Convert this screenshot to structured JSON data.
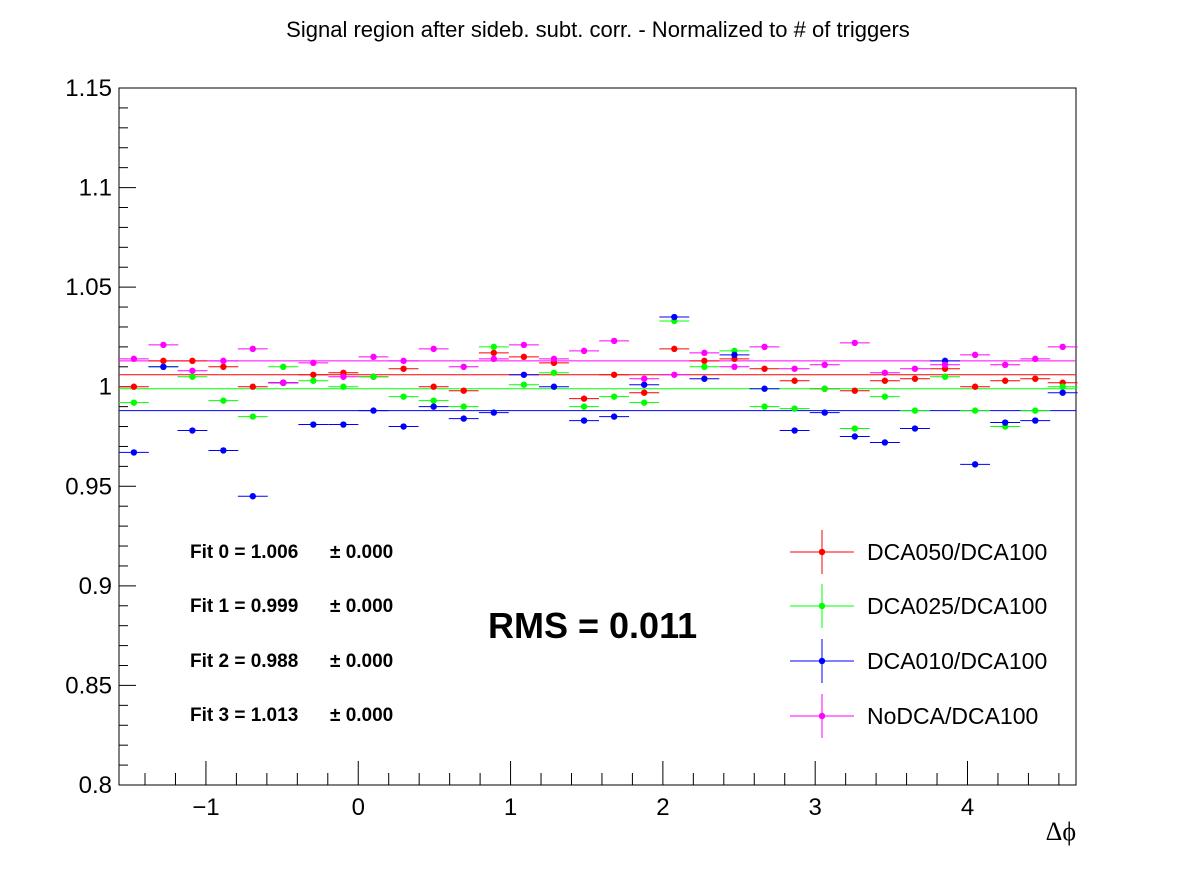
{
  "chart_data": {
    "type": "scatter",
    "title": "Signal region after sideb. subt. corr. - Normalized to # of triggers",
    "xlabel": "Δϕ",
    "ylabel": "",
    "xlim": [
      -1.5708,
      4.7124
    ],
    "ylim": [
      0.8,
      1.15
    ],
    "x_ticks": [
      -1,
      0,
      1,
      2,
      3,
      4
    ],
    "x_tick_labels": [
      "−1",
      "0",
      "1",
      "2",
      "3",
      "4"
    ],
    "y_ticks": [
      0.8,
      0.85,
      0.9,
      0.95,
      1.0,
      1.05,
      1.1,
      1.15
    ],
    "y_tick_labels": [
      "0.8",
      "0.85",
      "0.9",
      "0.95",
      "1",
      "1.05",
      "1.1",
      "1.15"
    ],
    "grid": false,
    "legend_position": "bottom-right",
    "x": [
      -1.4731,
      -1.2796,
      -1.089,
      -0.8855,
      -0.6923,
      -0.4925,
      -0.295,
      -0.0975,
      0.1,
      0.2975,
      0.495,
      0.6925,
      0.89,
      1.0875,
      1.285,
      1.4825,
      1.68,
      1.8775,
      2.075,
      2.2725,
      2.47,
      2.6675,
      2.865,
      3.0625,
      3.26,
      3.4575,
      3.655,
      3.8525,
      4.05,
      4.2475,
      4.445,
      4.625
    ],
    "series": [
      {
        "name": "DCA050/DCA100",
        "color": "#ff0000",
        "values": [
          1.0,
          1.013,
          1.013,
          1.01,
          1.0,
          1.002,
          1.006,
          1.007,
          1.005,
          1.009,
          1.0,
          0.998,
          1.017,
          1.015,
          1.012,
          0.994,
          1.006,
          0.997,
          1.019,
          1.013,
          1.014,
          1.009,
          1.003,
          0.999,
          0.998,
          1.003,
          1.004,
          1.009,
          1.0,
          1.003,
          1.004,
          1.002
        ],
        "fit": 1.006
      },
      {
        "name": "DCA025/DCA100",
        "color": "#00ff00",
        "values": [
          0.992,
          1.01,
          1.005,
          0.993,
          0.985,
          1.01,
          1.003,
          1.0,
          1.005,
          0.995,
          0.993,
          0.99,
          1.02,
          1.001,
          1.007,
          0.99,
          0.995,
          0.992,
          1.033,
          1.01,
          1.018,
          0.99,
          0.989,
          0.999,
          0.979,
          0.995,
          0.988,
          1.005,
          0.988,
          0.98,
          0.988,
          1.0
        ],
        "fit": 0.999
      },
      {
        "name": "DCA010/DCA100",
        "color": "#0000ff",
        "values": [
          0.967,
          1.01,
          0.978,
          0.968,
          0.945,
          1.002,
          0.981,
          0.981,
          0.988,
          0.98,
          0.99,
          0.984,
          0.987,
          1.006,
          1.0,
          0.983,
          0.985,
          1.001,
          1.035,
          1.004,
          1.016,
          0.999,
          0.978,
          0.987,
          0.975,
          0.972,
          0.979,
          1.013,
          0.961,
          0.982,
          0.983,
          0.997
        ],
        "fit": 0.988
      },
      {
        "name": "NoDCA/DCA100",
        "color": "#ff00ff",
        "values": [
          1.014,
          1.021,
          1.008,
          1.013,
          1.019,
          1.002,
          1.012,
          1.005,
          1.015,
          1.013,
          1.019,
          1.01,
          1.014,
          1.021,
          1.014,
          1.018,
          1.023,
          1.004,
          1.006,
          1.017,
          1.01,
          1.02,
          1.009,
          1.011,
          1.022,
          1.007,
          1.009,
          1.011,
          1.016,
          1.011,
          1.014,
          1.02
        ],
        "fit": 1.013
      }
    ],
    "annotations": {
      "fits": [
        "Fit 0 = 1.006",
        "Fit 1 = 0.999",
        "Fit 2 = 0.988",
        "Fit 3 = 1.013"
      ],
      "fit_errors": [
        "± 0.000",
        "± 0.000",
        "± 0.000",
        "± 0.000"
      ],
      "rms": "RMS = 0.011"
    }
  }
}
